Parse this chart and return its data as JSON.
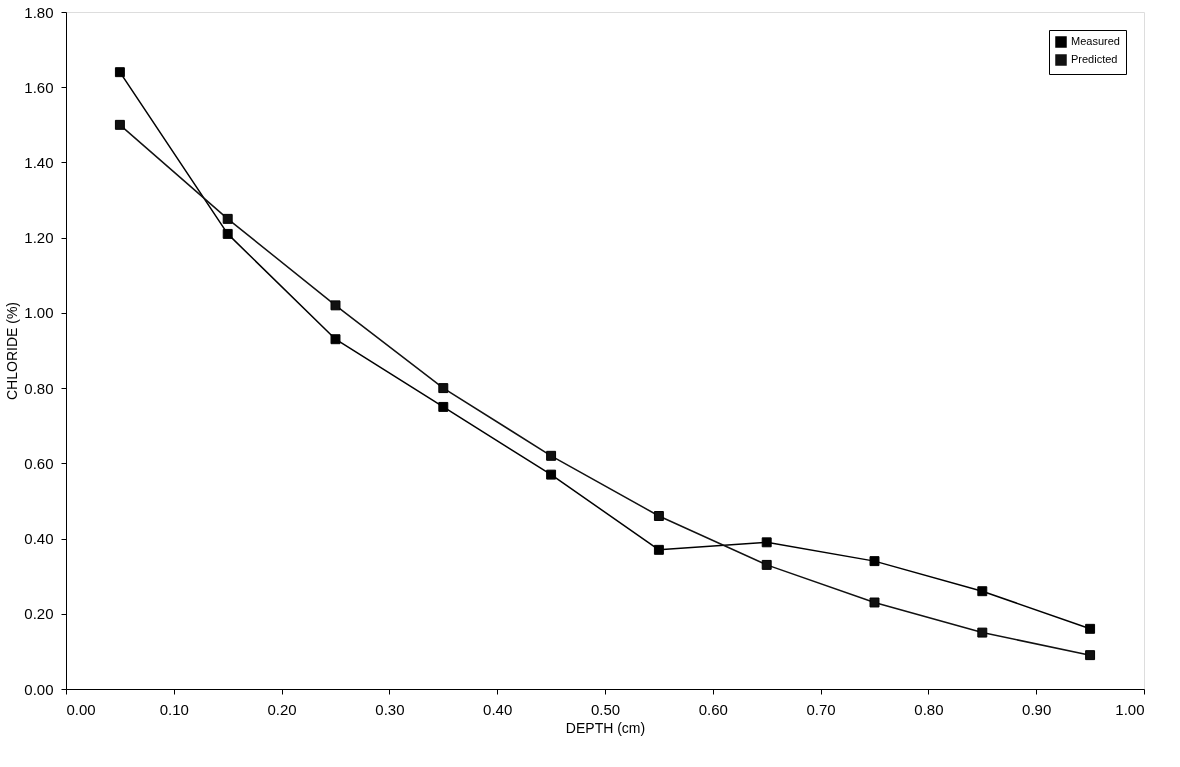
{
  "chart_data": {
    "type": "line",
    "xlabel": "DEPTH (cm)",
    "ylabel": "CHLORIDE (%)",
    "x": [
      0.05,
      0.15,
      0.25,
      0.35,
      0.45,
      0.55,
      0.65,
      0.75,
      0.85,
      0.95
    ],
    "series": [
      {
        "name": "Measured",
        "color": "#000000",
        "values": [
          1.64,
          1.21,
          0.93,
          0.75,
          0.57,
          0.37,
          0.39,
          0.34,
          0.26,
          0.16
        ]
      },
      {
        "name": "Predicted",
        "color": "#111111",
        "values": [
          1.5,
          1.25,
          1.02,
          0.8,
          0.62,
          0.46,
          0.33,
          0.23,
          0.15,
          0.09
        ]
      }
    ],
    "xlim": [
      0,
      1
    ],
    "ylim": [
      0,
      1.8
    ],
    "xticks": [
      {
        "value": 0,
        "label": "0.00"
      },
      {
        "value": 0.1,
        "label": "0.10"
      },
      {
        "value": 0.2,
        "label": "0.20"
      },
      {
        "value": 0.3,
        "label": "0.30"
      },
      {
        "value": 0.4,
        "label": "0.40"
      },
      {
        "value": 0.5,
        "label": "0.50"
      },
      {
        "value": 0.6,
        "label": "0.60"
      },
      {
        "value": 0.7,
        "label": "0.70"
      },
      {
        "value": 0.8,
        "label": "0.80"
      },
      {
        "value": 0.9,
        "label": "0.90"
      },
      {
        "value": 1,
        "label": "1.00"
      }
    ],
    "yticks": [
      {
        "value": 0,
        "label": "0.00"
      },
      {
        "value": 0.2,
        "label": "0.20"
      },
      {
        "value": 0.4,
        "label": "0.40"
      },
      {
        "value": 0.6,
        "label": "0.60"
      },
      {
        "value": 0.8,
        "label": "0.80"
      },
      {
        "value": 1,
        "label": "1.00"
      },
      {
        "value": 1.2,
        "label": "1.20"
      },
      {
        "value": 1.4,
        "label": "1.40"
      },
      {
        "value": 1.6,
        "label": "1.60"
      },
      {
        "value": 1.8,
        "label": "1.80"
      }
    ],
    "legend": "top right",
    "marker": "square",
    "line_style": "solid",
    "grid": false
  }
}
